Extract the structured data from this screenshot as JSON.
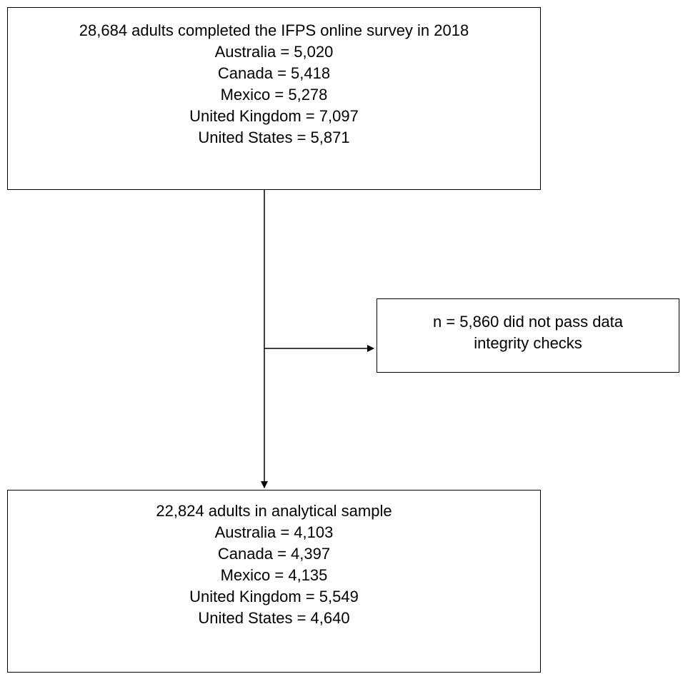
{
  "top_box": {
    "lines": [
      "28,684 adults completed the IFPS online survey in 2018",
      "Australia = 5,020",
      "Canada = 5,418",
      "Mexico = 5,278",
      "United Kingdom = 7,097",
      "United States = 5,871"
    ]
  },
  "exclusion_box": {
    "lines": [
      "n = 5,860 did not pass data",
      "integrity checks"
    ]
  },
  "bottom_box": {
    "lines": [
      "22,824 adults in analytical sample",
      "Australia = 4,103",
      "Canada = 4,397",
      "Mexico = 4,135",
      "United Kingdom = 5,549",
      "United States = 4,640"
    ]
  },
  "colors": {
    "stroke": "#000000",
    "background": "#ffffff"
  }
}
